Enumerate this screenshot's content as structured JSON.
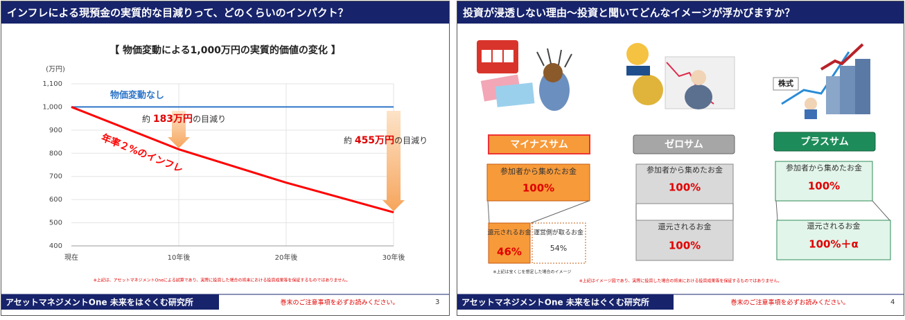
{
  "chart_data": {
    "type": "line",
    "title": "【 物価変動による1,000万円の実質的価値の変化 】",
    "y_unit": "(万円)",
    "categories": [
      "現在",
      "10年後",
      "20年後",
      "30年後"
    ],
    "series": [
      {
        "name": "物価変動なし",
        "color": "#2e75c8",
        "values": [
          1000,
          1000,
          1000,
          1000
        ]
      },
      {
        "name": "年率２%のインフレ",
        "color": "#ff0000",
        "values": [
          1000,
          817,
          673,
          545
        ]
      }
    ],
    "ylim": [
      400,
      1100
    ],
    "yticks": [
      400,
      500,
      600,
      700,
      800,
      900,
      {
        "value": 1000,
        "label": "1,000"
      },
      {
        "value": 1100,
        "label": "1,100"
      }
    ],
    "grid": true,
    "annotations": [
      {
        "prefix": "約 ",
        "amount": "183万円",
        "suffix": "の目減り"
      },
      {
        "prefix": "約 ",
        "amount": "455万円",
        "suffix": "の目減り"
      }
    ],
    "note": "※上記は、アセットマネジメントOneによる試算であり、実際に投資した場合の将来における投資成果等を保証するものではありません。"
  },
  "slides": [
    {
      "header": "インフレによる現預金の実質的な目減りって、どのくらいのインパクト？",
      "footer_org": "アセットマネジメントOne 未来をはぐくむ研究所",
      "footer_notice": "巻末のご注意事項を必ずお読みください。",
      "page": 3
    },
    {
      "header": "投資が浸透しない理由～投資と聞いてどんなイメージが浮かびますか？",
      "footer_org": "アセットマネジメントOne 未来をはぐくむ研究所",
      "footer_notice": "巻末のご注意事項を必ずお読みください。",
      "page": 4,
      "stock_label": "株式",
      "columns": [
        {
          "label": "マイナスサム",
          "collected": "参加者から集めたお金",
          "collected_pct": "100%",
          "returned": "還元されるお金",
          "returned_pct": "46%",
          "operator": "運営側が取るお金",
          "operator_pct": "54%"
        },
        {
          "label": "ゼロサム",
          "collected": "参加者から集めたお金",
          "collected_pct": "100%",
          "returned": "還元されるお金",
          "returned_pct": "100%"
        },
        {
          "label": "プラスサム",
          "collected": "参加者から集めたお金",
          "collected_pct": "100%",
          "returned": "還元されるお金",
          "returned_pct": "100%＋α"
        }
      ],
      "lottery_note": "※上記は宝くじを想定した場合のイメージ",
      "note": "※上記はイメージ図であり、実際に投資した場合の将来における投資成果等を保証するものではありません。"
    }
  ]
}
